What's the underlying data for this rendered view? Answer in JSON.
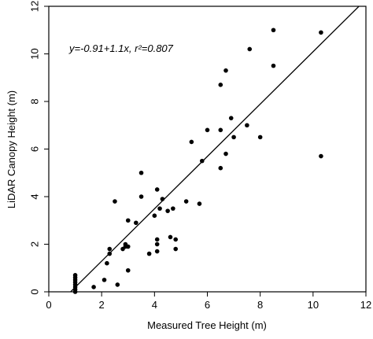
{
  "chart_data": {
    "type": "scatter",
    "annotation": "y=-0.91+1.1x, r²=0.807",
    "x_label": "Measured Tree Height (m)",
    "y_label": "LiDAR Canopy Height (m)",
    "fit": {
      "intercept": -0.91,
      "slope": 1.1
    },
    "xlim": [
      0,
      12
    ],
    "ylim": [
      0,
      12
    ],
    "xticks": [
      0,
      2,
      4,
      6,
      8,
      10,
      12
    ],
    "yticks": [
      0,
      2,
      4,
      6,
      8,
      10,
      12
    ],
    "color": "#000000",
    "x": [
      8.5,
      10.3,
      7.6,
      6.7,
      8.5,
      6.5,
      6.9,
      7.5,
      6.0,
      6.5,
      7.0,
      8.0,
      5.4,
      6.7,
      5.8,
      6.5,
      10.3,
      3.5,
      2.5,
      3.5,
      4.1,
      4.3,
      4.0,
      4.2,
      4.5,
      4.7,
      5.2,
      5.7,
      3.0,
      3.3,
      2.9,
      2.3,
      2.8,
      2.9,
      3.0,
      4.1,
      4.1,
      4.6,
      4.8,
      4.8,
      3.8,
      4.1,
      2.2,
      2.3,
      2.1,
      3.0,
      2.6,
      1.7,
      1.0,
      1.0,
      1.0,
      1.0,
      1.0,
      1.0,
      1.0,
      1.0
    ],
    "y": [
      11.0,
      10.9,
      10.2,
      9.3,
      9.5,
      8.7,
      7.3,
      7.0,
      6.8,
      6.8,
      6.5,
      6.5,
      6.3,
      5.8,
      5.5,
      5.2,
      5.7,
      5.0,
      3.8,
      4.0,
      4.3,
      3.9,
      3.2,
      3.5,
      3.4,
      3.5,
      3.8,
      3.7,
      3.0,
      2.9,
      2.0,
      1.8,
      1.8,
      1.9,
      1.9,
      2.2,
      2.0,
      2.3,
      2.2,
      1.8,
      1.6,
      1.7,
      1.2,
      1.6,
      0.5,
      0.9,
      0.3,
      0.2,
      0.0,
      0.1,
      0.2,
      0.3,
      0.4,
      0.5,
      0.6,
      0.7
    ]
  }
}
